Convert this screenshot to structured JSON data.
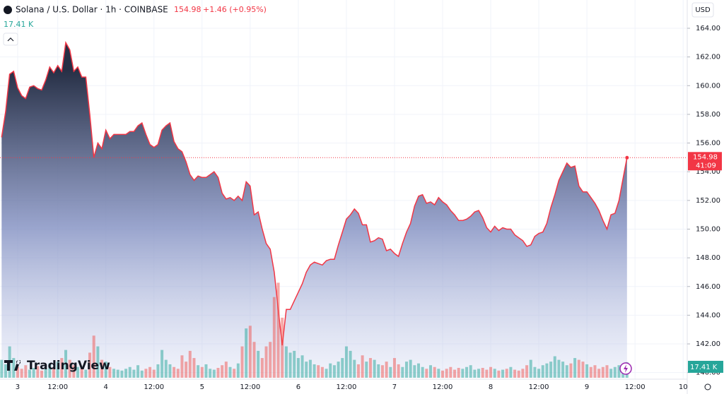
{
  "chart_data": {
    "type": "area",
    "title": "Solana / U.S. Dollar · 1h · COINBASE",
    "last_price": "154.98",
    "change": "+1.46 (+0.95%)",
    "countdown": "41:09",
    "currency": "USD",
    "brand": "TradingView",
    "volume_label": "17.41 K",
    "categories": [
      null,
      null,
      null,
      null,
      "3",
      null,
      null,
      null,
      null,
      null,
      null,
      null,
      null,
      null,
      "12:00",
      null,
      null,
      null,
      null,
      null,
      null,
      null,
      null,
      null,
      null,
      null,
      "4",
      null,
      null,
      null,
      null,
      null,
      null,
      null,
      null,
      null,
      null,
      null,
      "12:00",
      null,
      null,
      null,
      null,
      null,
      null,
      null,
      null,
      null,
      null,
      null,
      "5",
      null,
      null,
      null,
      null,
      null,
      null,
      null,
      null,
      null,
      null,
      null,
      "12:00",
      null,
      null,
      null,
      null,
      null,
      null,
      null,
      null,
      null,
      null,
      null,
      "6",
      null,
      null,
      null,
      null,
      null,
      null,
      null,
      null,
      null,
      null,
      null,
      "12:00",
      null,
      null,
      null,
      null,
      null,
      null,
      null,
      null,
      null,
      null,
      null,
      "7",
      null,
      null,
      null,
      null,
      null,
      null,
      null,
      null,
      null,
      null,
      null,
      "12:00",
      null,
      null,
      null,
      null,
      null,
      null,
      null,
      null,
      null,
      null,
      null,
      "8",
      null,
      null,
      null,
      null,
      null,
      null,
      null,
      null,
      null,
      null,
      null,
      "12:00",
      null,
      null,
      null,
      null,
      null,
      null,
      null,
      null,
      null,
      null,
      null,
      "9",
      null,
      null,
      null,
      null,
      null,
      null,
      null,
      null,
      null,
      null,
      null,
      "12:00",
      null,
      null,
      null,
      null,
      null,
      null,
      null,
      null,
      null,
      null,
      null,
      "10"
    ],
    "series": [
      {
        "name": "Price",
        "color": "#f23645",
        "values": [
          156.4,
          158.2,
          160.8,
          161.0,
          159.85,
          159.3,
          159.1,
          159.9,
          160.0,
          159.8,
          159.7,
          160.4,
          161.3,
          160.9,
          161.4,
          161.0,
          163.0,
          162.5,
          161.0,
          161.3,
          160.6,
          160.6,
          158.0,
          155.0,
          156.0,
          155.6,
          156.9,
          156.3,
          156.6,
          156.6,
          156.6,
          156.6,
          156.8,
          156.8,
          157.2,
          157.4,
          156.6,
          155.9,
          155.7,
          155.9,
          156.9,
          157.2,
          157.4,
          156.1,
          155.6,
          155.4,
          154.7,
          153.8,
          153.4,
          153.7,
          153.6,
          153.6,
          153.8,
          154.0,
          153.6,
          152.5,
          152.1,
          152.2,
          152.0,
          152.3,
          152.0,
          153.3,
          153.0,
          151.0,
          151.2,
          150.0,
          149.0,
          148.6,
          147.0,
          144.4,
          141.9,
          144.4,
          144.4,
          145.0,
          145.6,
          146.2,
          147.0,
          147.5,
          147.7,
          147.6,
          147.5,
          147.8,
          147.9,
          147.9,
          148.9,
          149.8,
          150.7,
          151.0,
          151.4,
          151.1,
          150.3,
          150.3,
          149.1,
          149.2,
          149.4,
          149.3,
          148.5,
          148.6,
          148.3,
          148.1,
          149.0,
          149.8,
          150.4,
          151.6,
          152.3,
          152.4,
          151.8,
          151.9,
          151.7,
          152.2,
          151.9,
          151.7,
          151.3,
          151.0,
          150.6,
          150.6,
          150.7,
          150.9,
          151.2,
          151.3,
          150.8,
          150.1,
          149.8,
          150.2,
          149.9,
          150.1,
          150.0,
          150.0,
          149.6,
          149.4,
          149.2,
          148.8,
          148.9,
          149.5,
          149.7,
          149.8,
          150.4,
          151.5,
          152.4,
          153.4,
          154.0,
          154.6,
          154.3,
          154.4,
          153.0,
          152.6,
          152.6,
          152.2,
          151.8,
          151.3,
          150.6,
          150.0,
          151.0,
          151.1,
          152.0,
          153.5,
          154.98,
          null,
          null,
          null,
          null,
          null,
          null,
          null,
          null,
          null,
          null,
          null,
          null,
          null,
          null
        ]
      },
      {
        "name": "Volume",
        "up_color": "#26a69a",
        "down_color": "#ef5350",
        "values": [
          20,
          15,
          35,
          22,
          12,
          10,
          14,
          9,
          11,
          13,
          8,
          10,
          16,
          12,
          18,
          22,
          31,
          20,
          14,
          12,
          10,
          9,
          28,
          47,
          35,
          20,
          18,
          12,
          10,
          9,
          8,
          10,
          12,
          9,
          14,
          8,
          10,
          12,
          9,
          15,
          31,
          20,
          15,
          12,
          10,
          25,
          18,
          30,
          22,
          14,
          12,
          15,
          10,
          9,
          11,
          14,
          18,
          12,
          10,
          16,
          35,
          55,
          58,
          40,
          30,
          22,
          35,
          40,
          90,
          106,
          67,
          35,
          28,
          30,
          22,
          25,
          18,
          20,
          15,
          14,
          12,
          10,
          16,
          14,
          18,
          22,
          35,
          30,
          20,
          15,
          25,
          18,
          22,
          20,
          15,
          14,
          18,
          12,
          22,
          15,
          12,
          18,
          20,
          14,
          16,
          12,
          10,
          14,
          12,
          10,
          8,
          10,
          12,
          9,
          11,
          10,
          12,
          14,
          9,
          10,
          11,
          9,
          12,
          10,
          8,
          9,
          10,
          12,
          9,
          8,
          10,
          14,
          20,
          12,
          10,
          14,
          16,
          18,
          24,
          20,
          18,
          14,
          16,
          22,
          20,
          18,
          15,
          12,
          14,
          10,
          12,
          14,
          10,
          12,
          14,
          9,
          17.41,
          null,
          null,
          null,
          null,
          null,
          null,
          null,
          null,
          null,
          null,
          null,
          null,
          null,
          null
        ]
      }
    ],
    "ylim": [
      139.64,
      165.97
    ],
    "yticks": [
      {
        "value": 140,
        "label": "140.00"
      },
      {
        "value": 142,
        "label": "142.00"
      },
      {
        "value": 144,
        "label": "144.00"
      },
      {
        "value": 146,
        "label": "146.00"
      },
      {
        "value": 148,
        "label": "148.00"
      },
      {
        "value": 150,
        "label": "150.00"
      },
      {
        "value": 152,
        "label": "152.00"
      },
      {
        "value": 154,
        "label": "154.00"
      },
      {
        "value": 156,
        "label": "156.00"
      },
      {
        "value": 158,
        "label": "158.00"
      },
      {
        "value": 160,
        "label": "160.00"
      },
      {
        "value": 162,
        "label": "162.00"
      },
      {
        "value": 164,
        "label": "164.00"
      }
    ],
    "grid": true
  }
}
